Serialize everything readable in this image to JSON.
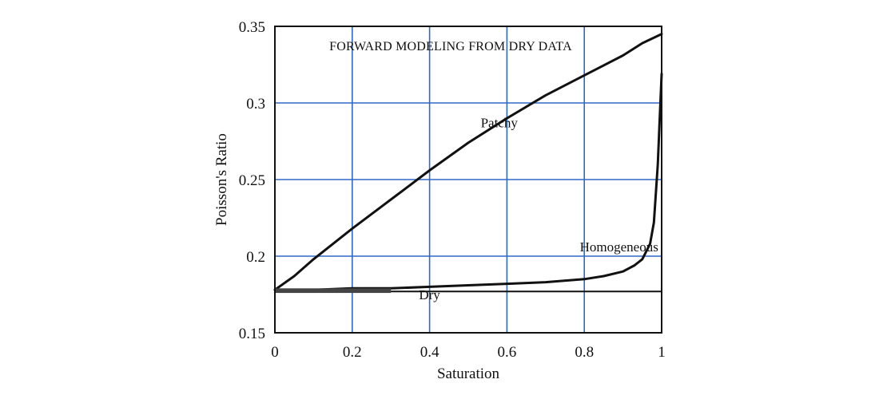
{
  "chart_data": {
    "type": "line",
    "title": "FORWARD MODELING FROM DRY DATA",
    "xlabel": "Saturation",
    "ylabel": "Poisson's Ratio",
    "xlim": [
      0,
      1
    ],
    "ylim": [
      0.15,
      0.35
    ],
    "xticks": [
      "0",
      "0.2",
      "0.4",
      "0.6",
      "0.8",
      "1"
    ],
    "yticks": [
      "0.15",
      "0.2",
      "0.25",
      "0.3",
      "0.35"
    ],
    "grid": true,
    "legend": "none",
    "series": [
      {
        "name": "Patchy",
        "x": [
          0,
          0.05,
          0.1,
          0.2,
          0.3,
          0.4,
          0.5,
          0.6,
          0.7,
          0.8,
          0.9,
          0.95,
          1.0
        ],
        "y": [
          0.178,
          0.187,
          0.198,
          0.218,
          0.237,
          0.256,
          0.274,
          0.29,
          0.305,
          0.318,
          0.331,
          0.339,
          0.345
        ]
      },
      {
        "name": "Homogeneous",
        "x": [
          0,
          0.1,
          0.2,
          0.3,
          0.4,
          0.5,
          0.6,
          0.7,
          0.8,
          0.85,
          0.9,
          0.93,
          0.95,
          0.97,
          0.98,
          0.99,
          0.995,
          1.0
        ],
        "y": [
          0.178,
          0.178,
          0.179,
          0.179,
          0.18,
          0.181,
          0.182,
          0.183,
          0.185,
          0.187,
          0.19,
          0.194,
          0.198,
          0.208,
          0.222,
          0.26,
          0.29,
          0.319
        ]
      },
      {
        "name": "Dry",
        "x": [
          0,
          1
        ],
        "y": [
          0.177,
          0.177
        ]
      }
    ],
    "annotations": [
      {
        "text": "Patchy",
        "x": 0.58,
        "y": 0.284
      },
      {
        "text": "Homogeneous",
        "x": 0.89,
        "y": 0.203
      },
      {
        "text": "Dry",
        "x": 0.4,
        "y": 0.172
      }
    ]
  }
}
